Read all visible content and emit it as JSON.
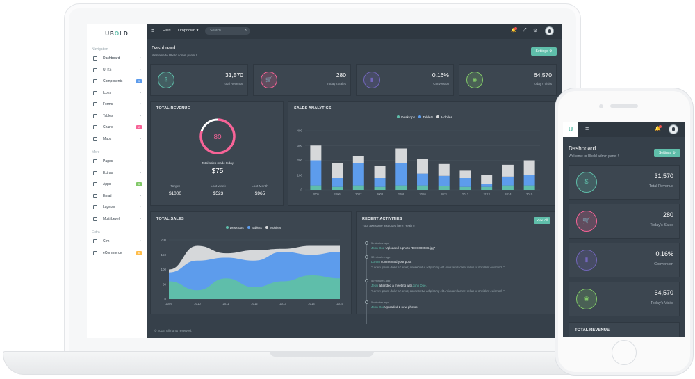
{
  "colors": {
    "teal": "#5fbeaa",
    "pink": "#f76397",
    "purple": "#7266ba",
    "green": "#81c868",
    "blue": "#5d9cec",
    "grey": "#d6d8da",
    "yellow": "#ffbd4a"
  },
  "app": {
    "logo_prefix": "UB",
    "logo_o": "O",
    "logo_suffix": "LD",
    "phone_logo": "U"
  },
  "sidebar": {
    "sections": [
      {
        "title": "Navigation",
        "items": [
          {
            "label": "Dashboard",
            "icon": "home-icon",
            "chevron": "›"
          },
          {
            "label": "UI Kit",
            "icon": "briefcase-icon",
            "chevron": "›"
          },
          {
            "label": "Components",
            "icon": "bulb-icon",
            "badge": "9",
            "badge_color": "#5d9cec"
          },
          {
            "label": "Icons",
            "icon": "diamond-icon",
            "chevron": "›"
          },
          {
            "label": "Forms",
            "icon": "edit-icon",
            "chevron": "›"
          },
          {
            "label": "Tables",
            "icon": "table-icon",
            "chevron": "›"
          },
          {
            "label": "Charts",
            "icon": "chart-icon",
            "badge": "11",
            "badge_color": "#f76397"
          },
          {
            "label": "Maps",
            "icon": "map-pin-icon",
            "chevron": "›"
          }
        ]
      },
      {
        "title": "More",
        "items": [
          {
            "label": "Pages",
            "icon": "pages-icon",
            "chevron": "›"
          },
          {
            "label": "Extras",
            "icon": "archive-icon",
            "chevron": "›"
          },
          {
            "label": "Apps",
            "icon": "crown-icon",
            "badge": "3",
            "badge_color": "#81c868"
          },
          {
            "label": "Email",
            "icon": "mail-icon",
            "chevron": "›"
          },
          {
            "label": "Layouts",
            "icon": "layers-icon",
            "chevron": "›"
          },
          {
            "label": "Multi Level",
            "icon": "share-icon",
            "chevron": "›"
          }
        ]
      },
      {
        "title": "Extra",
        "items": [
          {
            "label": "Crm",
            "icon": "user-icon",
            "chevron": "›"
          },
          {
            "label": "eCommerce",
            "icon": "cart-icon",
            "badge": "6",
            "badge_color": "#ffbd4a"
          }
        ]
      }
    ]
  },
  "topbar": {
    "menu_glyph": "≡",
    "files": "Files",
    "dropdown": "Dropdown",
    "dropdown_caret": "▾",
    "search_placeholder": "Search...",
    "search_glyph": "⌕",
    "bell_glyph": "🔔",
    "fullscreen_glyph": "⤢",
    "gear_glyph": "⚙"
  },
  "page": {
    "title": "Dashboard",
    "subtitle": "Welcome to Ubold admin panel !",
    "settings_label": "Settings ⚙"
  },
  "stats": [
    {
      "value": "31,570",
      "label": "Total Revenue",
      "glyph": "$",
      "color": "#5fbeaa",
      "icon": "dollar-icon"
    },
    {
      "value": "280",
      "label": "Today's Sales",
      "glyph": "🛒",
      "color": "#f76397",
      "icon": "cart-icon"
    },
    {
      "value": "0.16%",
      "label": "Conversion",
      "glyph": "▮",
      "color": "#7266ba",
      "icon": "bar-chart-icon"
    },
    {
      "value": "64,570",
      "label": "Today's Visits",
      "glyph": "◉",
      "color": "#81c868",
      "icon": "eye-icon"
    }
  ],
  "total_revenue": {
    "title": "TOTAL REVENUE",
    "value": "80",
    "progress": 0.8,
    "caption": "Total sales made today",
    "amount": "$75",
    "kpis": [
      {
        "label": "Target",
        "value": "$1000"
      },
      {
        "label": "Last week",
        "value": "$523"
      },
      {
        "label": "Last Month",
        "value": "$965"
      }
    ]
  },
  "chart_data": [
    {
      "type": "bar",
      "stacked": true,
      "title": "SALES ANALYTICS",
      "categories": [
        "2005",
        "2006",
        "2007",
        "2008",
        "2009",
        "2010",
        "2011",
        "2012",
        "2013",
        "2014",
        "2015"
      ],
      "ylim": [
        0,
        400
      ],
      "yticks": [
        0,
        100,
        200,
        300,
        400
      ],
      "series": [
        {
          "name": "Desktops",
          "color": "#5fbeaa",
          "values": [
            30,
            20,
            30,
            20,
            30,
            30,
            25,
            20,
            20,
            30,
            30
          ]
        },
        {
          "name": "Tablets",
          "color": "#5d9cec",
          "values": [
            170,
            60,
            150,
            60,
            150,
            80,
            70,
            60,
            20,
            60,
            70
          ]
        },
        {
          "name": "Mobiles",
          "color": "#d6d8da",
          "values": [
            100,
            100,
            50,
            80,
            100,
            100,
            80,
            50,
            60,
            80,
            100
          ]
        }
      ]
    },
    {
      "type": "area",
      "stacked": true,
      "title": "TOTAL SALES",
      "categories": [
        "2009",
        "2010",
        "2011",
        "2012",
        "2013",
        "2014",
        "2015"
      ],
      "ylim": [
        0,
        200
      ],
      "yticks": [
        0,
        50,
        100,
        150,
        200
      ],
      "series": [
        {
          "name": "Desktops",
          "color": "#5fbeaa",
          "values": [
            60,
            30,
            70,
            40,
            60,
            80,
            70
          ]
        },
        {
          "name": "Tablets",
          "color": "#5d9cec",
          "values": [
            30,
            100,
            70,
            90,
            100,
            70,
            90
          ]
        },
        {
          "name": "Mobiles",
          "color": "#d6d8da",
          "values": [
            10,
            50,
            15,
            35,
            10,
            30,
            20
          ]
        }
      ]
    }
  ],
  "activities": {
    "title": "RECENT ACTIVITIES",
    "subtitle": "Your awesome text goes here. Yeah !!",
    "button": "View All",
    "items": [
      {
        "time": "5 minutes ago",
        "name": "John Doe",
        "text": " Uploaded a photo \"DSC000586.jpg\""
      },
      {
        "time": "30 minutes ago",
        "name": "Lorem",
        "text": " commented your post.",
        "quote": "\"Lorem ipsum dolor sit amet, consectetur adipiscing elit. Aliquam laoreet tellus ut tincidunt euismod. \""
      },
      {
        "time": "59 minutes ago",
        "name": "Jessi",
        "text": " attended a meeting with",
        "name2": "John Doe.",
        "quote": "\"Lorem ipsum dolor sit amet, consectetur adipiscing elit. Aliquam laoreet tellus ut tincidunt euismod. \""
      },
      {
        "time": "5 minutes ago",
        "name": "John Doe",
        "text": "Uploaded 2 new photos"
      }
    ]
  },
  "footer": "© 2016. All rights reserved.",
  "phone": {
    "total_revenue_title": "TOTAL REVENUE"
  }
}
